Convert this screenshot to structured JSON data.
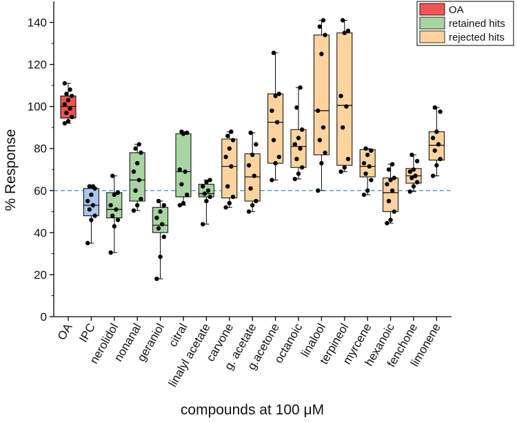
{
  "chart_data": {
    "type": "box",
    "title": "",
    "xlabel": "compounds at 100 μM",
    "ylabel": "% Response",
    "ylim": [
      0,
      150
    ],
    "yticks": [
      0,
      20,
      40,
      60,
      80,
      100,
      120,
      140
    ],
    "reference_line": {
      "y": 60,
      "style": "dashed",
      "color": "#5b9bd5"
    },
    "legend": {
      "position": "top-right",
      "entries": [
        {
          "label": "OA",
          "color": "#f05454"
        },
        {
          "label": "retained hits",
          "color": "#a8d5a2"
        },
        {
          "label": "rejected hits",
          "color": "#fdd49e"
        }
      ]
    },
    "groups": {
      "OA": "#f05454",
      "IPC": "#a9c6ec",
      "retained": "#a8d5a2",
      "rejected": "#fdd49e"
    },
    "categories": [
      "OA",
      "IPC",
      "nerolidol",
      "nonanal",
      "geraniol",
      "citral",
      "linalyl acetate",
      "carvone",
      "g. acetate",
      "g.acetone",
      "octanoic",
      "linalool",
      "terpineol",
      "myrcene",
      "hexanoic",
      "fenchone",
      "limonene"
    ],
    "boxes": [
      {
        "name": "OA",
        "group": "OA",
        "min": 92,
        "q1": 94.5,
        "median": 100,
        "q3": 105,
        "max": 111,
        "points": [
          92,
          93,
          95,
          97,
          99,
          101,
          103,
          105,
          106,
          108,
          111
        ]
      },
      {
        "name": "IPC",
        "group": "IPC",
        "min": 35,
        "q1": 48,
        "median": 53,
        "q3": 61,
        "max": 62,
        "points": [
          35,
          46,
          48,
          51,
          53,
          55,
          58,
          61,
          62,
          62
        ]
      },
      {
        "name": "nerolidol",
        "group": "retained",
        "min": 30.5,
        "q1": 47,
        "median": 51,
        "q3": 59,
        "max": 67,
        "points": [
          30.5,
          43,
          46,
          48,
          51,
          53,
          58,
          59,
          67
        ]
      },
      {
        "name": "nonanal",
        "group": "retained",
        "min": 50.5,
        "q1": 55,
        "median": 65,
        "q3": 78,
        "max": 82,
        "points": [
          50.5,
          53,
          56,
          60,
          65,
          69,
          73,
          78,
          80,
          82
        ]
      },
      {
        "name": "geraniol",
        "group": "retained",
        "min": 18,
        "q1": 40,
        "median": 43.5,
        "q3": 52,
        "max": 55,
        "points": [
          18,
          28.5,
          38,
          42,
          44,
          47,
          50,
          53,
          55
        ]
      },
      {
        "name": "citral",
        "group": "retained",
        "min": 53,
        "q1": 57,
        "median": 69,
        "q3": 87,
        "max": 88,
        "points": [
          53,
          54,
          58,
          63,
          69,
          70,
          87,
          87.5,
          88
        ]
      },
      {
        "name": "linalyl acetate",
        "group": "retained",
        "min": 44,
        "q1": 57,
        "median": 58.5,
        "q3": 63,
        "max": 65,
        "points": [
          44,
          55,
          57,
          58.5,
          60,
          62,
          64,
          65
        ]
      },
      {
        "name": "carvone",
        "group": "rejected",
        "min": 52,
        "q1": 56.5,
        "median": 71.5,
        "q3": 84.5,
        "max": 88,
        "points": [
          52,
          54,
          57,
          62,
          71.5,
          76,
          80,
          84,
          86,
          88
        ]
      },
      {
        "name": "g. acetate",
        "group": "rejected",
        "min": 50,
        "q1": 55,
        "median": 66.5,
        "q3": 77.5,
        "max": 87.5,
        "points": [
          50,
          53,
          55,
          61,
          67,
          72,
          77,
          82,
          87.5
        ]
      },
      {
        "name": "g.acetone",
        "group": "rejected",
        "min": 65,
        "q1": 73,
        "median": 92.5,
        "q3": 106,
        "max": 125.5,
        "points": [
          65,
          73,
          76,
          84,
          92.5,
          98,
          105,
          106,
          125.5
        ]
      },
      {
        "name": "octanoic",
        "group": "rejected",
        "min": 65.5,
        "q1": 71,
        "median": 81,
        "q3": 89,
        "max": 109,
        "points": [
          65.5,
          68,
          71,
          75,
          80,
          82,
          85,
          89,
          99.5,
          109
        ]
      },
      {
        "name": "linalool",
        "group": "rejected",
        "min": 60,
        "q1": 77,
        "median": 98,
        "q3": 134,
        "max": 141,
        "points": [
          60,
          73,
          78,
          84,
          90,
          98,
          125,
          134,
          138,
          141
        ]
      },
      {
        "name": "terpineol",
        "group": "rejected",
        "min": 69,
        "q1": 72,
        "median": 100.5,
        "q3": 135,
        "max": 141,
        "points": [
          69,
          71,
          75,
          90,
          100,
          105,
          135,
          136,
          141
        ]
      },
      {
        "name": "myrcene",
        "group": "rejected",
        "min": 58,
        "q1": 66.5,
        "median": 71.5,
        "q3": 79.5,
        "max": 80,
        "points": [
          58,
          60,
          65,
          68,
          71.5,
          73,
          77,
          79,
          80
        ]
      },
      {
        "name": "hexanoic",
        "group": "rejected",
        "min": 44.5,
        "q1": 50,
        "median": 59,
        "q3": 66,
        "max": 72.5,
        "points": [
          44.5,
          46,
          50,
          55,
          60,
          63,
          65,
          66,
          70,
          72.5
        ]
      },
      {
        "name": "fenchone",
        "group": "rejected",
        "min": 59.5,
        "q1": 63.5,
        "median": 67,
        "q3": 70.5,
        "max": 77,
        "points": [
          59.5,
          62,
          64,
          66,
          67,
          69,
          70,
          74,
          77
        ]
      },
      {
        "name": "limonene",
        "group": "rejected",
        "min": 67,
        "q1": 74.5,
        "median": 81.5,
        "q3": 88,
        "max": 99.5,
        "points": [
          67,
          72,
          75,
          79,
          82,
          85,
          88,
          97.5,
          99.5
        ]
      }
    ]
  }
}
